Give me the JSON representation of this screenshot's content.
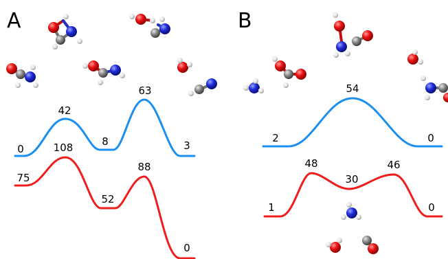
{
  "panels": {
    "a": {
      "letter": "A",
      "profiles": [
        {
          "color": "#1a8ff0",
          "labels": [
            "0",
            "42",
            "8",
            "63",
            "3"
          ]
        },
        {
          "color": "#f01d1d",
          "labels": [
            "75",
            "108",
            "52",
            "88",
            "0"
          ]
        }
      ]
    },
    "b": {
      "letter": "B",
      "profiles": [
        {
          "color": "#1a8ff0",
          "labels": [
            "2",
            "54",
            "0"
          ]
        },
        {
          "color": "#f01d1d",
          "labels": [
            "1",
            "48",
            "30",
            "46",
            "0"
          ]
        }
      ]
    }
  },
  "atom_colors": {
    "oxygen": "#e10c0c",
    "nitrogen": "#1c2ad8",
    "carbon": "#8a8a8a",
    "hydrogen": "#ececec"
  }
}
